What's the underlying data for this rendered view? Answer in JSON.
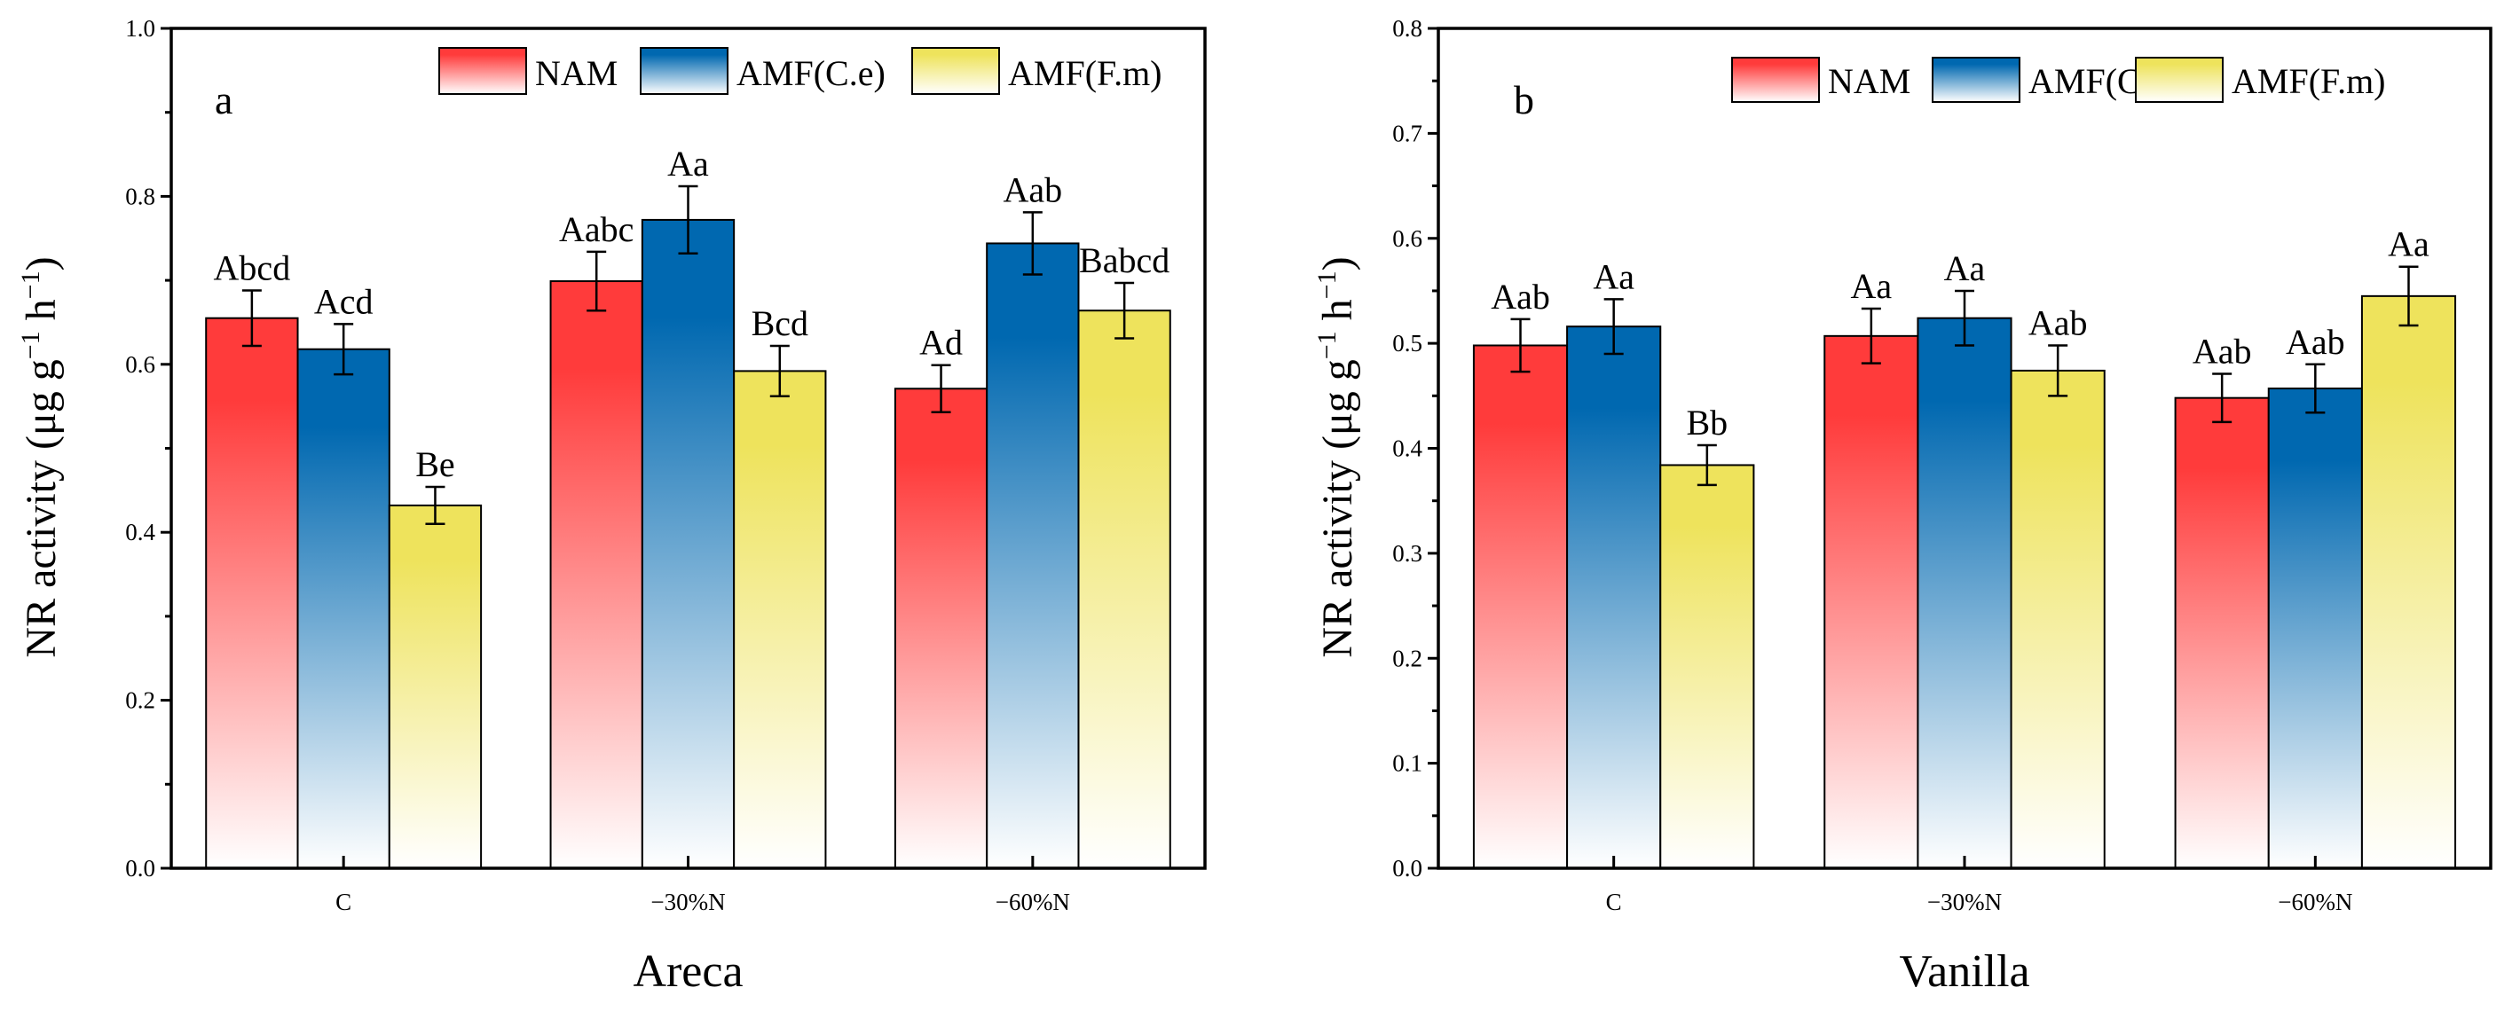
{
  "chart_data": [
    {
      "type": "bar",
      "panel_label": "a",
      "xlabel": "Areca",
      "ylabel": "NR activity (μg g⁻¹ h⁻¹)",
      "ylabel_parts": {
        "main": "NR activity (μg g",
        "sup1": "−1",
        "mid": " h",
        "sup2": "−1",
        "end": ")"
      },
      "categories": [
        "C",
        "−30%N",
        "−60%N"
      ],
      "ylim": [
        0,
        1.0
      ],
      "yticks": [
        "0.0",
        "0.2",
        "0.4",
        "0.6",
        "0.8",
        "1.0"
      ],
      "ytick_step": 0.2,
      "legend_position": "top-right",
      "series": [
        {
          "name": "NAM",
          "color": "#ff3b3b",
          "values": [
            0.655,
            0.699,
            0.571
          ],
          "errors": [
            0.033,
            0.035,
            0.028
          ],
          "labels": [
            "Abcd",
            "Aabc",
            "Ad"
          ]
        },
        {
          "name": "AMF(C.e)",
          "color": "#0068b0",
          "values": [
            0.618,
            0.772,
            0.744
          ],
          "errors": [
            0.03,
            0.04,
            0.037
          ],
          "labels": [
            "Acd",
            "Aa",
            "Aab"
          ]
        },
        {
          "name": "AMF(F.m)",
          "color": "#eee35c",
          "values": [
            0.432,
            0.592,
            0.664
          ],
          "errors": [
            0.022,
            0.03,
            0.033
          ],
          "labels": [
            "Be",
            "Bcd",
            "Babcd"
          ]
        }
      ]
    },
    {
      "type": "bar",
      "panel_label": "b",
      "xlabel": "Vanilla",
      "ylabel": "NR activity (μg g⁻¹ h⁻¹)",
      "ylabel_parts": {
        "main": "NR activity (μg g",
        "sup1": "−1",
        "mid": " h",
        "sup2": "−1",
        "end": ")"
      },
      "categories": [
        "C",
        "−30%N",
        "−60%N"
      ],
      "ylim": [
        0,
        0.8
      ],
      "yticks": [
        "0.0",
        "0.1",
        "0.2",
        "0.3",
        "0.4",
        "0.5",
        "0.6",
        "0.7",
        "0.8"
      ],
      "ytick_step": 0.1,
      "legend_position": "top-right",
      "series": [
        {
          "name": "NAM",
          "color": "#ff3b3b",
          "values": [
            0.498,
            0.507,
            0.448
          ],
          "errors": [
            0.025,
            0.026,
            0.023
          ],
          "labels": [
            "Aab",
            "Aa",
            "Aab"
          ]
        },
        {
          "name": "AMF(C.e)",
          "color": "#0068b0",
          "values": [
            0.516,
            0.524,
            0.457
          ],
          "errors": [
            0.026,
            0.026,
            0.023
          ],
          "labels": [
            "Aa",
            "Aa",
            "Aab"
          ]
        },
        {
          "name": "AMF(F.m)",
          "color": "#eee35c",
          "values": [
            0.384,
            0.474,
            0.545
          ],
          "errors": [
            0.019,
            0.024,
            0.028
          ],
          "labels": [
            "Bb",
            "Aab",
            "Aa"
          ]
        }
      ]
    }
  ]
}
